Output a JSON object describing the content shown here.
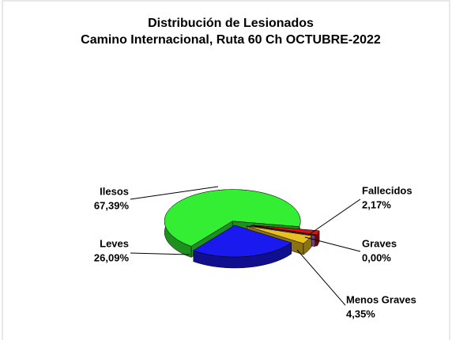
{
  "chart_data": {
    "type": "pie",
    "title": "Distribución de Lesionados",
    "subtitle": "Camino Internacional, Ruta 60 Ch OCTUBRE-2022",
    "categories": [
      "Ilesos",
      "Leves",
      "Menos Graves",
      "Graves",
      "Fallecidos"
    ],
    "values": [
      67.39,
      26.09,
      4.35,
      0.0,
      2.17
    ],
    "value_labels": [
      "67,39%",
      "26,09%",
      "4,35%",
      "0,00%",
      "2,17%"
    ],
    "colors": [
      "#33ee33",
      "#1a1aee",
      "#e8c020",
      "#cc66cc",
      "#dd1111"
    ]
  }
}
